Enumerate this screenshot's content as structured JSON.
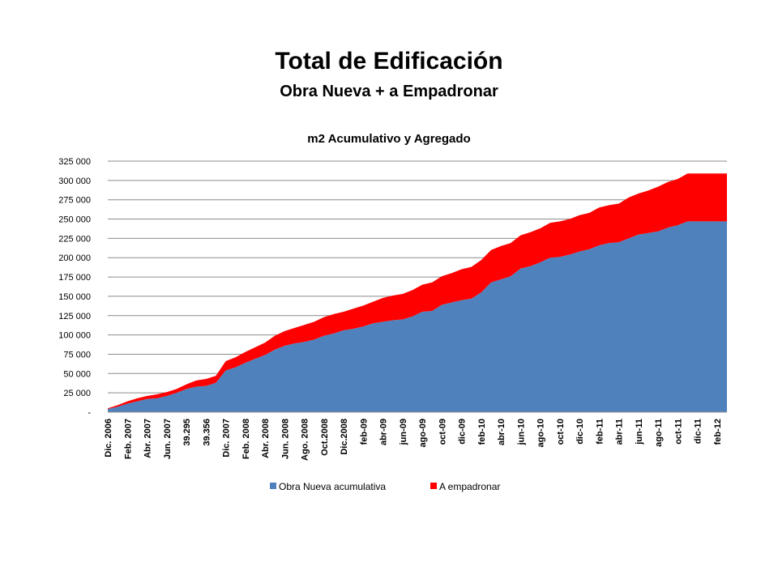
{
  "chart_data": {
    "type": "stacked_area",
    "title": "Total de Edificación",
    "subtitle": "Obra Nueva + a Empadronar",
    "chart_title": "m2 Acumulativo y Agregado",
    "categories": [
      "Dic. 2006",
      null,
      "Feb. 2007",
      null,
      "Abr. 2007",
      null,
      "Jun. 2007",
      null,
      "39.295",
      null,
      "39.356",
      null,
      "Dic. 2007",
      null,
      "Feb. 2008",
      null,
      "Abr. 2008",
      null,
      "Jun. 2008",
      null,
      "Ago. 2008",
      null,
      "Oct.2008",
      null,
      "Dic.2008",
      null,
      "feb-09",
      null,
      "abr-09",
      null,
      "jun-09",
      null,
      "ago-09",
      null,
      "oct-09",
      null,
      "dic-09",
      null,
      "feb-10",
      null,
      "abr-10",
      null,
      "jun-10",
      null,
      "ago-10",
      null,
      "oct-10",
      null,
      "dic-10",
      null,
      "feb-11",
      null,
      "abr-11",
      null,
      "jun-11",
      null,
      "ago-11",
      null,
      "oct-11",
      null,
      "dic-11",
      null,
      "feb-12",
      null
    ],
    "series": [
      {
        "name": "Obra Nueva acumulativa",
        "color": "#4f81bd",
        "values": [
          4000,
          7000,
          11000,
          14000,
          17000,
          18000,
          21000,
          25000,
          30000,
          33000,
          34000,
          38000,
          54000,
          58000,
          64000,
          69000,
          74000,
          81000,
          86000,
          89000,
          91000,
          94000,
          99000,
          102000,
          106000,
          108000,
          111000,
          115000,
          117000,
          119000,
          120000,
          124000,
          130000,
          131000,
          139000,
          142000,
          145000,
          147000,
          155000,
          168000,
          172000,
          176000,
          186000,
          189000,
          194000,
          200000,
          201000,
          204000,
          208000,
          211000,
          216000,
          219000,
          220000,
          225000,
          230000,
          232000,
          234000,
          239000,
          242000,
          247000,
          247000,
          247000,
          247000,
          247000
        ]
      },
      {
        "name": "A empadronar",
        "color": "#ff0000",
        "values": [
          1000,
          2000,
          3000,
          4000,
          4000,
          5000,
          5000,
          5000,
          6000,
          8000,
          9000,
          9000,
          12000,
          13000,
          14000,
          15000,
          16000,
          18000,
          19000,
          20000,
          22000,
          23000,
          24000,
          25000,
          24000,
          26000,
          27000,
          28000,
          31000,
          32000,
          33000,
          34000,
          35000,
          37000,
          37000,
          38000,
          40000,
          41000,
          42000,
          42000,
          43000,
          43000,
          43000,
          44000,
          44000,
          45000,
          46000,
          46000,
          47000,
          47000,
          49000,
          49000,
          50000,
          53000,
          53000,
          55000,
          58000,
          59000,
          60000,
          62000,
          62000,
          62000,
          62000,
          62000
        ]
      }
    ],
    "ylim": [
      0,
      325000
    ],
    "yticks": [
      {
        "value": 0,
        "label": "-"
      },
      {
        "value": 25000,
        "label": "25 000"
      },
      {
        "value": 50000,
        "label": "50 000"
      },
      {
        "value": 75000,
        "label": "75 000"
      },
      {
        "value": 100000,
        "label": "100 000"
      },
      {
        "value": 125000,
        "label": "125 000"
      },
      {
        "value": 150000,
        "label": "150 000"
      },
      {
        "value": 175000,
        "label": "175 000"
      },
      {
        "value": 200000,
        "label": "200 000"
      },
      {
        "value": 225000,
        "label": "225 000"
      },
      {
        "value": 250000,
        "label": "250 000"
      },
      {
        "value": 275000,
        "label": "275 000"
      },
      {
        "value": 300000,
        "label": "300 000"
      },
      {
        "value": 325000,
        "label": "325 000"
      }
    ],
    "grid": true,
    "legend": "bottom"
  }
}
